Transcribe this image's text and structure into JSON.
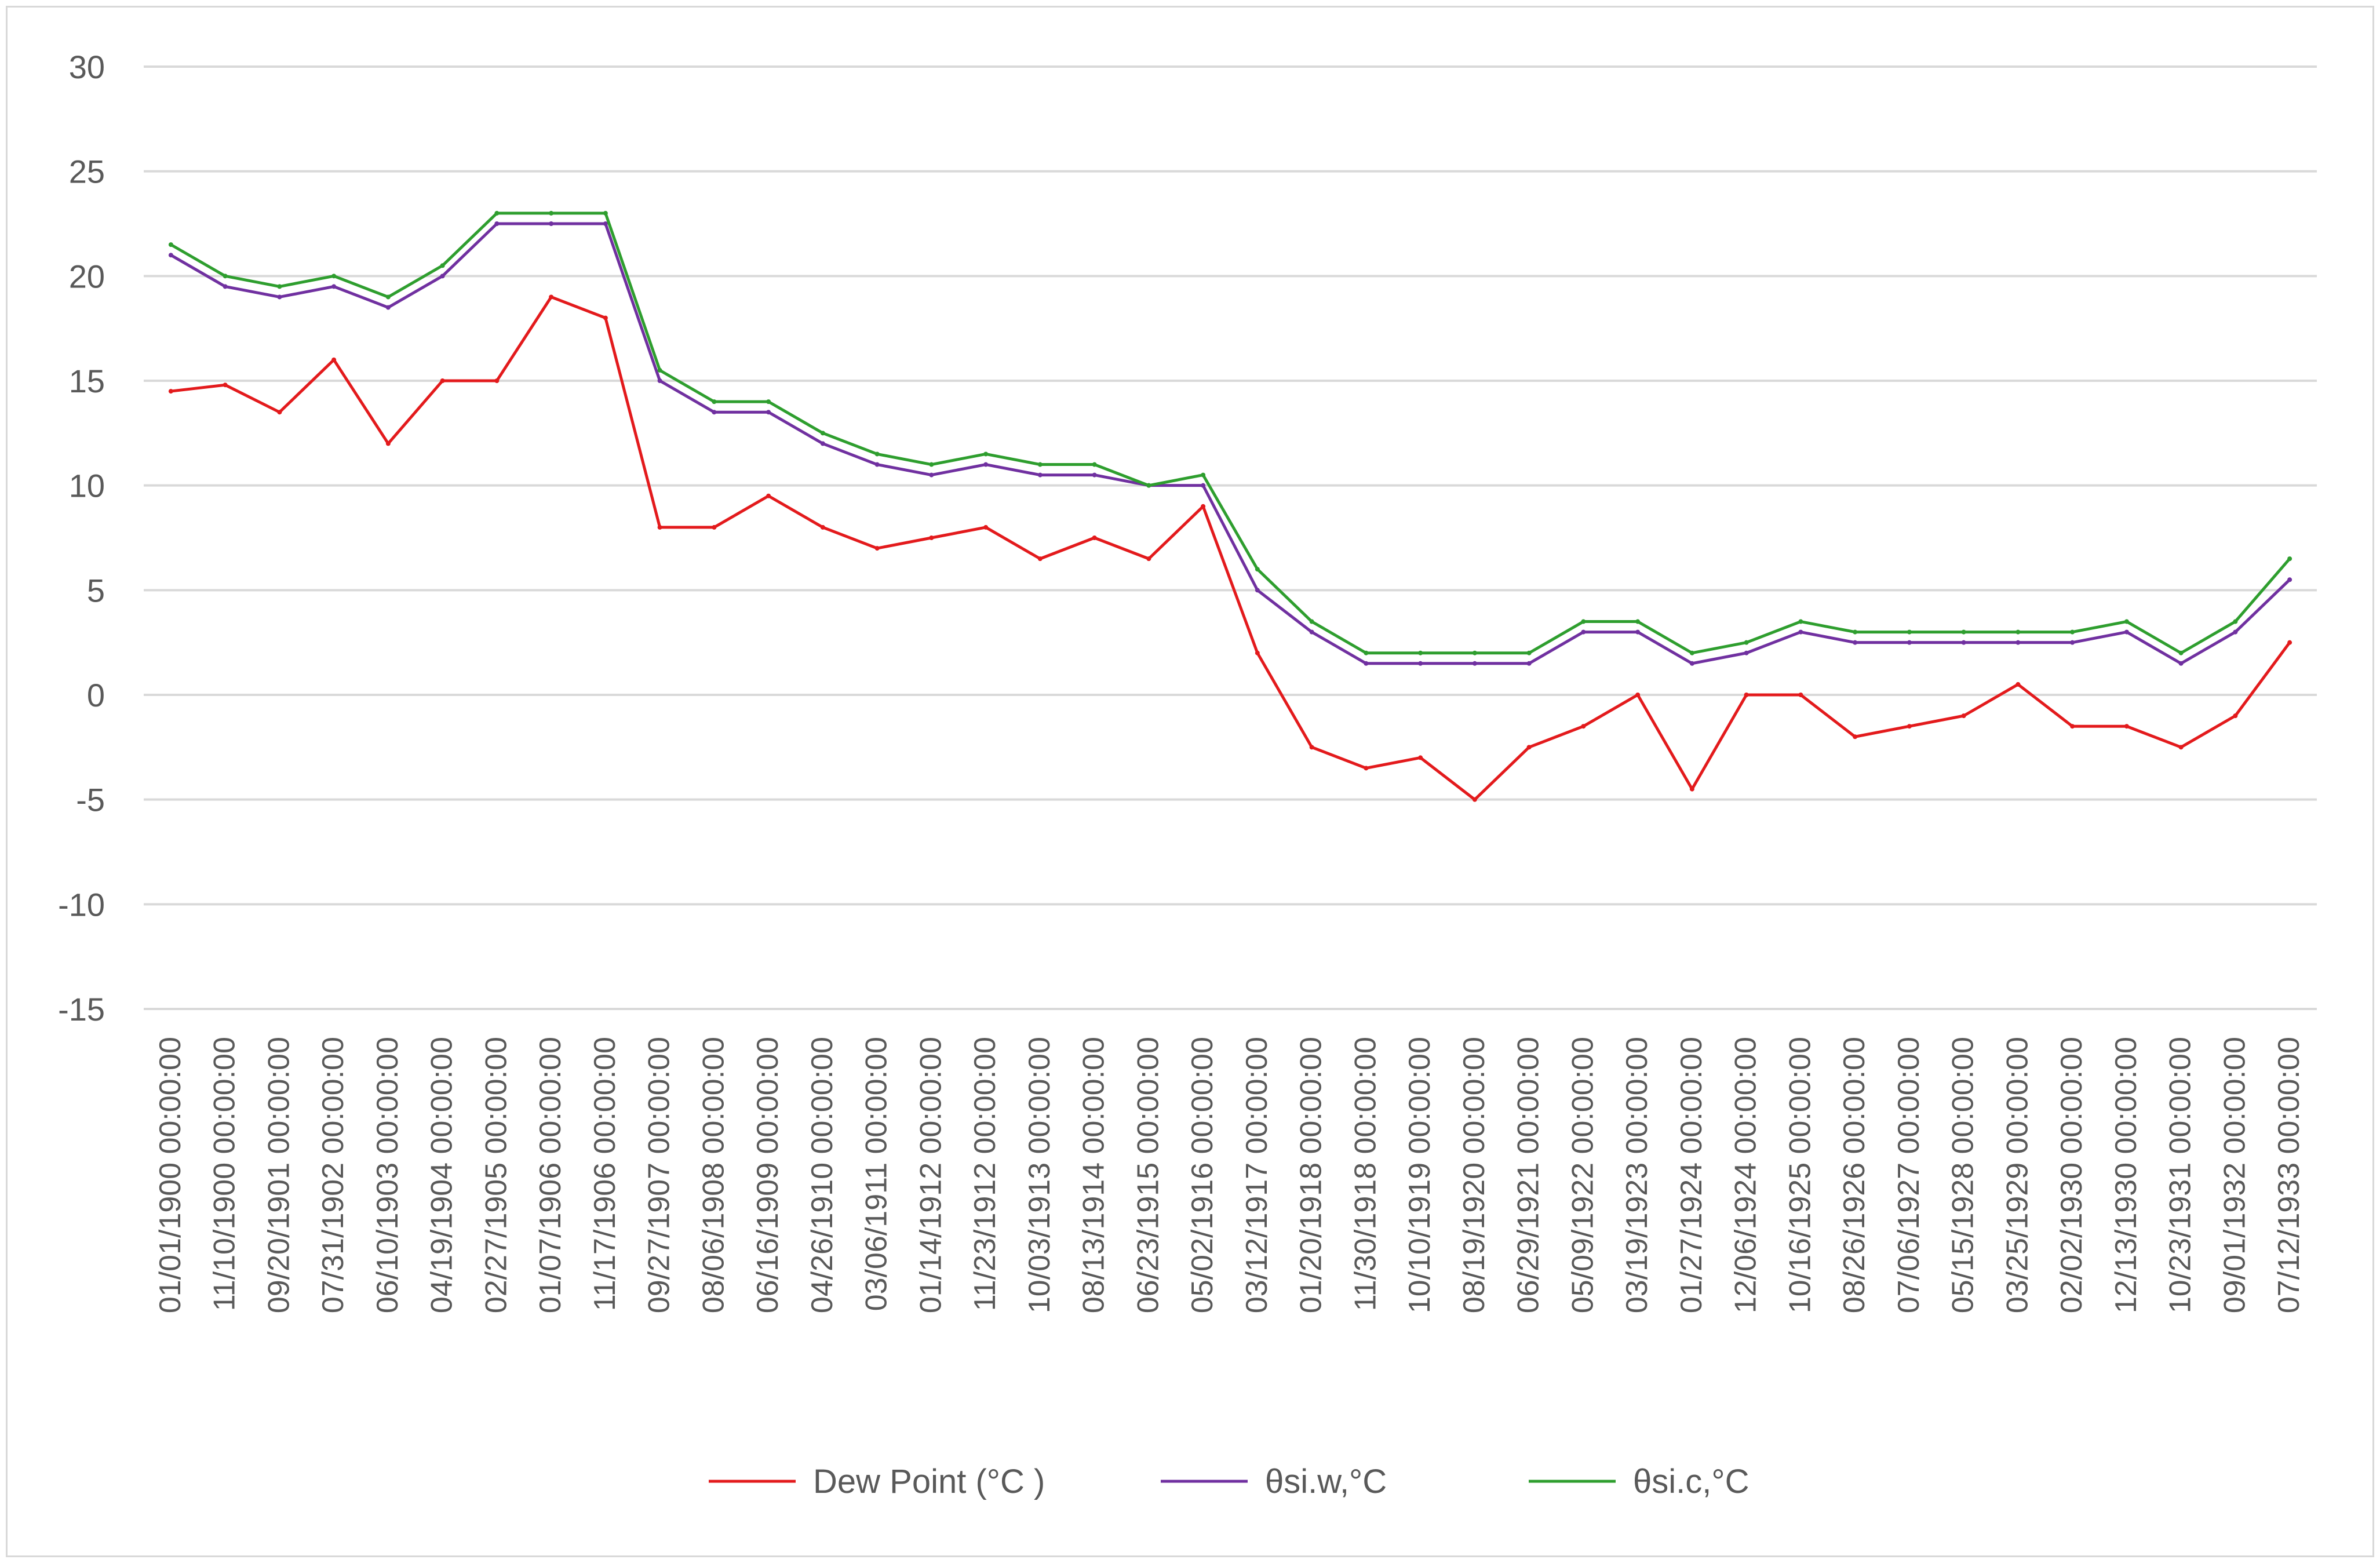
{
  "chart_data": {
    "type": "line",
    "title": "",
    "xlabel": "",
    "ylabel": "",
    "ylim": [
      -15,
      30
    ],
    "y_ticks": [
      "30",
      "25",
      "20",
      "15",
      "10",
      "5",
      "0",
      "-5",
      "-10",
      "-15"
    ],
    "grid": "horizontal",
    "legend_position": "bottom",
    "categories": [
      "01/01/1900 00:00:00",
      "11/10/1900 00:00:00",
      "09/20/1901 00:00:00",
      "07/31/1902 00:00:00",
      "06/10/1903 00:00:00",
      "04/19/1904 00:00:00",
      "02/27/1905 00:00:00",
      "01/07/1906 00:00:00",
      "11/17/1906 00:00:00",
      "09/27/1907 00:00:00",
      "08/06/1908 00:00:00",
      "06/16/1909 00:00:00",
      "04/26/1910 00:00:00",
      "03/06/1911 00:00:00",
      "01/14/1912 00:00:00",
      "11/23/1912 00:00:00",
      "10/03/1913 00:00:00",
      "08/13/1914 00:00:00",
      "06/23/1915 00:00:00",
      "05/02/1916 00:00:00",
      "03/12/1917 00:00:00",
      "01/20/1918 00:00:00",
      "11/30/1918 00:00:00",
      "10/10/1919 00:00:00",
      "08/19/1920 00:00:00",
      "06/29/1921 00:00:00",
      "05/09/1922 00:00:00",
      "03/19/1923 00:00:00",
      "01/27/1924 00:00:00",
      "12/06/1924 00:00:00",
      "10/16/1925 00:00:00",
      "08/26/1926 00:00:00",
      "07/06/1927 00:00:00",
      "05/15/1928 00:00:00",
      "03/25/1929 00:00:00",
      "02/02/1930 00:00:00",
      "12/13/1930 00:00:00",
      "10/23/1931 00:00:00",
      "09/01/1932 00:00:00",
      "07/12/1933 00:00:00"
    ],
    "series": [
      {
        "name": "Dew Point   (°C )",
        "color": "#e31a1c",
        "values": [
          14.5,
          14.8,
          13.5,
          16.0,
          12.0,
          15.0,
          15.0,
          19.0,
          18.0,
          8.0,
          8.0,
          9.5,
          8.0,
          7.0,
          7.5,
          8.0,
          6.5,
          7.5,
          6.5,
          9.0,
          2.0,
          -2.5,
          -3.5,
          -3.0,
          -5.0,
          -2.5,
          -1.5,
          0.0,
          -4.5,
          0.0,
          0.0,
          -2.0,
          -1.5,
          -1.0,
          0.5,
          -1.5,
          -1.5,
          -2.5,
          -1.0,
          2.5
        ]
      },
      {
        "name": "θsi.w,°C",
        "color": "#7030a0",
        "values": [
          21.0,
          19.5,
          19.0,
          19.5,
          18.5,
          20.0,
          22.5,
          22.5,
          22.5,
          15.0,
          13.5,
          13.5,
          12.0,
          11.0,
          10.5,
          11.0,
          10.5,
          10.5,
          10.0,
          10.0,
          5.0,
          3.0,
          1.5,
          1.5,
          1.5,
          1.5,
          3.0,
          3.0,
          1.5,
          2.0,
          3.0,
          2.5,
          2.5,
          2.5,
          2.5,
          2.5,
          3.0,
          1.5,
          3.0,
          5.5
        ]
      },
      {
        "name": "θsi.c,°C",
        "color": "#2e9e2e",
        "values": [
          21.5,
          20.0,
          19.5,
          20.0,
          19.0,
          20.5,
          23.0,
          23.0,
          23.0,
          15.5,
          14.0,
          14.0,
          12.5,
          11.5,
          11.0,
          11.5,
          11.0,
          11.0,
          10.0,
          10.5,
          6.0,
          3.5,
          2.0,
          2.0,
          2.0,
          2.0,
          3.5,
          3.5,
          2.0,
          2.5,
          3.5,
          3.0,
          3.0,
          3.0,
          3.0,
          3.0,
          3.5,
          2.0,
          3.5,
          6.5
        ]
      }
    ]
  }
}
